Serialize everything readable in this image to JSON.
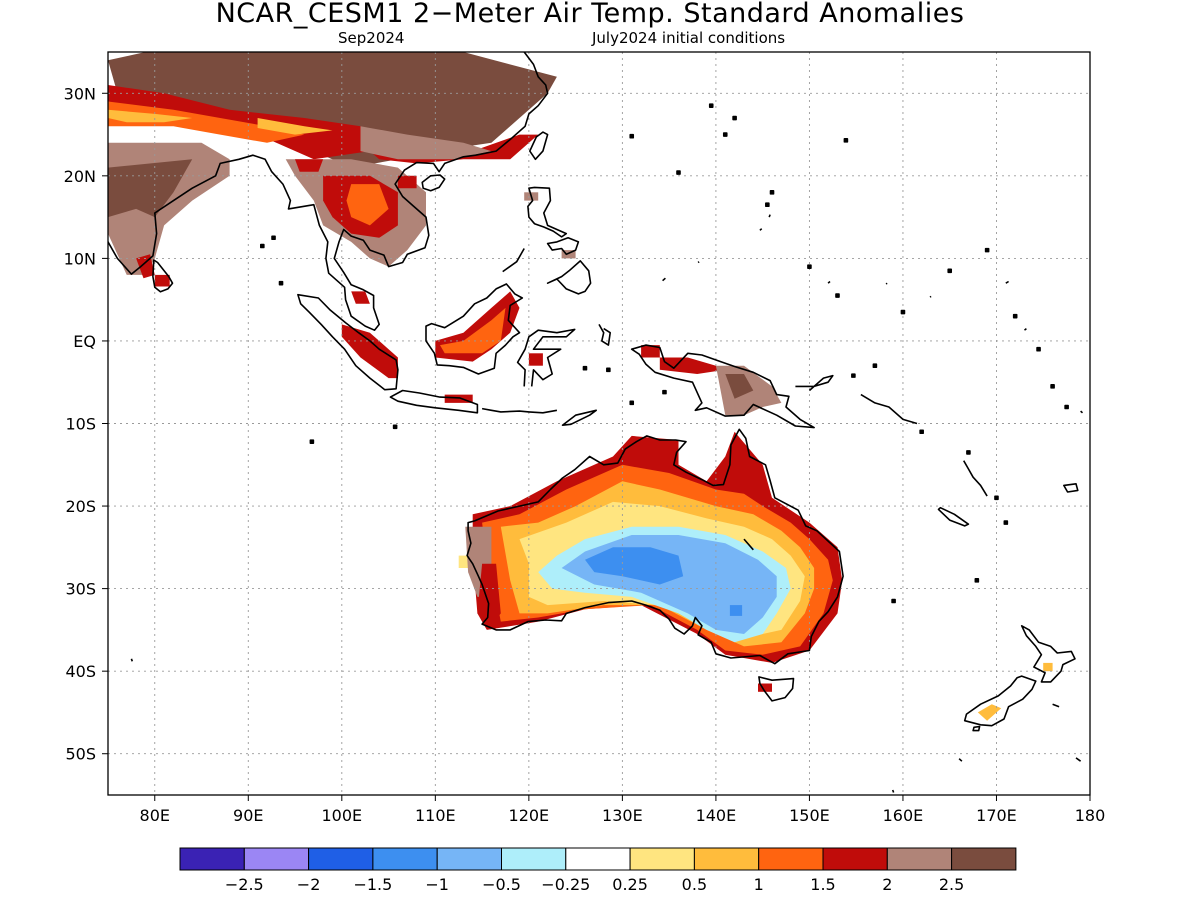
{
  "title": "NCAR_CESM1 2−Meter Air Temp. Standard Anomalies",
  "subtitle_left": "Sep2024",
  "subtitle_right": "July2024 initial conditions",
  "map": {
    "lon_range": [
      75,
      180
    ],
    "lat_range": [
      -55,
      35
    ],
    "lon_ticks": [
      "80E",
      "90E",
      "100E",
      "110E",
      "120E",
      "130E",
      "140E",
      "150E",
      "160E",
      "170E",
      "180"
    ],
    "lat_ticks": [
      "30N",
      "20N",
      "10N",
      "EQ",
      "10S",
      "20S",
      "30S",
      "40S",
      "50S"
    ],
    "grid": "dotted"
  },
  "colorbar": {
    "colors": [
      "#3a22b4",
      "#9b86f4",
      "#1f5fe6",
      "#3d8ff0",
      "#76b5f6",
      "#aeeefa",
      "#ffffff",
      "#ffe580",
      "#ffbc3c",
      "#ff6410",
      "#c00c0a",
      "#b08478",
      "#7a4c3e"
    ],
    "labels": [
      "−2.5",
      "−2",
      "−1.5",
      "−1",
      "−0.5",
      "−0.25",
      "0.25",
      "0.5",
      "1",
      "1.5",
      "2",
      "2.5"
    ]
  },
  "field": {
    "colors": {
      "brown_dark": "#7a4c3e",
      "brown_light": "#b08478",
      "red": "#c00c0a",
      "orange": "#ff6410",
      "yellow_orange": "#ffbc3c",
      "yellow": "#ffe580",
      "light_cyan": "#aeeefa",
      "light_blue": "#76b5f6",
      "blue": "#3d8ff0"
    }
  }
}
